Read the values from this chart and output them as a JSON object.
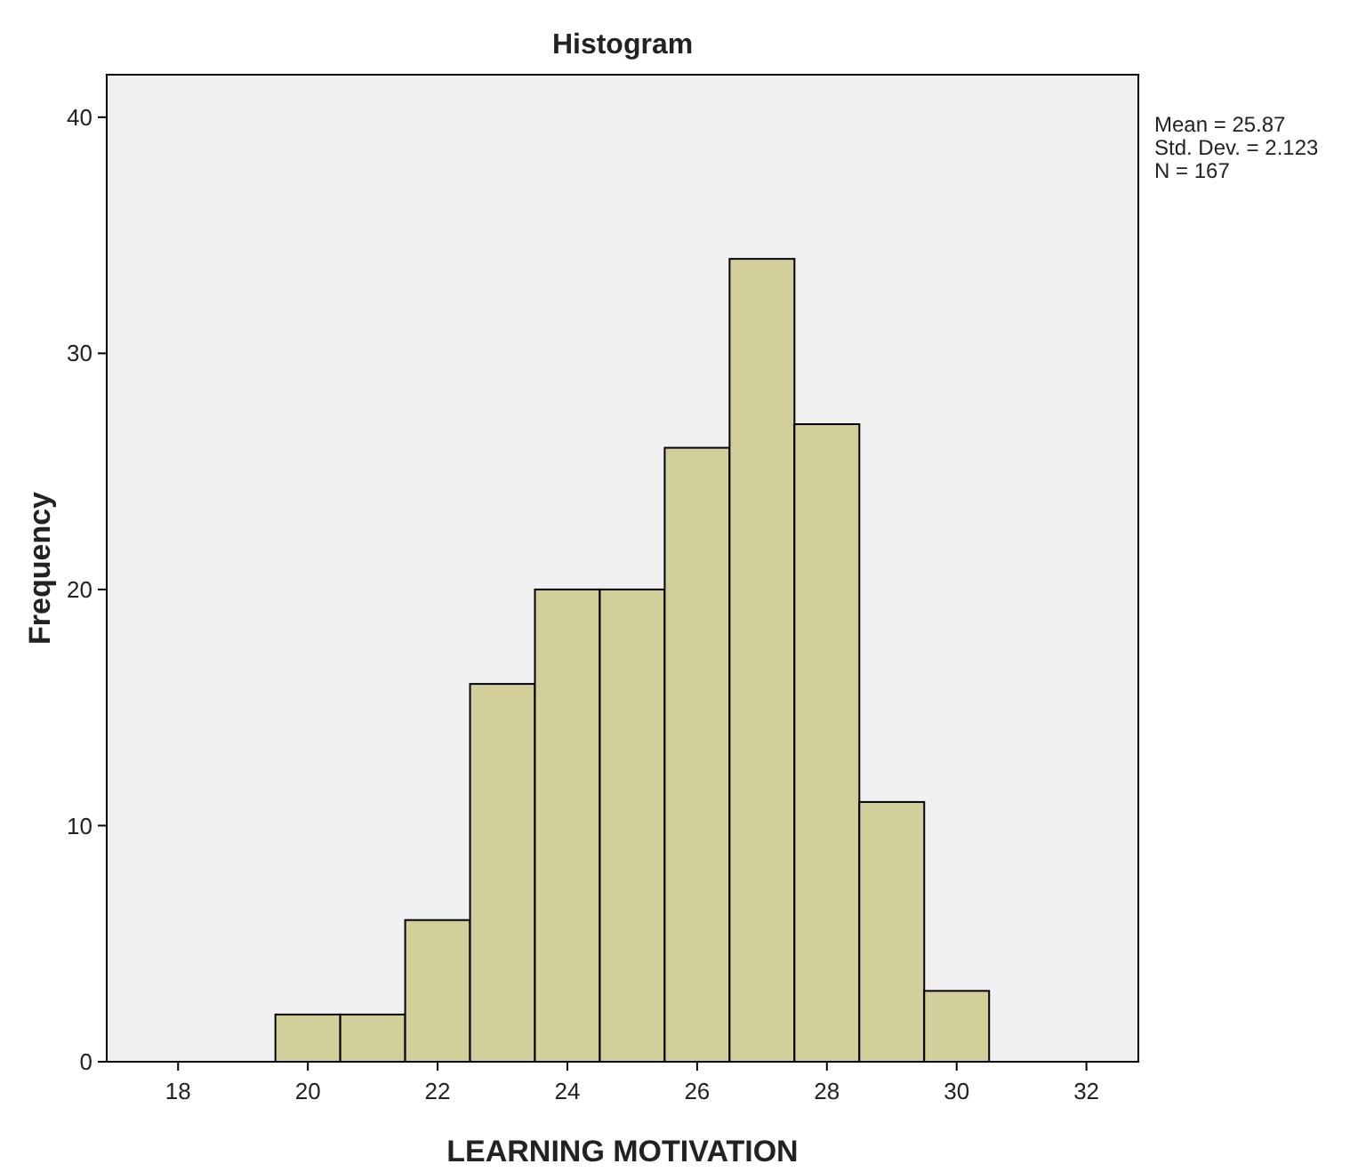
{
  "chart_data": {
    "type": "histogram",
    "title": "Histogram",
    "xlabel": "LEARNING MOTIVATION",
    "ylabel": "Frequency",
    "bins": [
      19.5,
      20.5,
      21.5,
      22.5,
      23.5,
      24.5,
      25.5,
      26.5,
      27.5,
      28.5,
      29.5,
      30.5
    ],
    "values": [
      2,
      2,
      6,
      16,
      20,
      20,
      26,
      34,
      27,
      11,
      3
    ],
    "color": "#d3cf9b",
    "xlim": [
      16.9,
      32.8
    ],
    "xticks": [
      18,
      20,
      22,
      24,
      26,
      28,
      30,
      32
    ],
    "ylim": [
      0,
      41.8
    ],
    "yticks": [
      0,
      10,
      20,
      30,
      40
    ],
    "annotations": [
      "Mean = 25.87",
      "Std. Dev. = 2.123",
      "N = 167"
    ]
  }
}
